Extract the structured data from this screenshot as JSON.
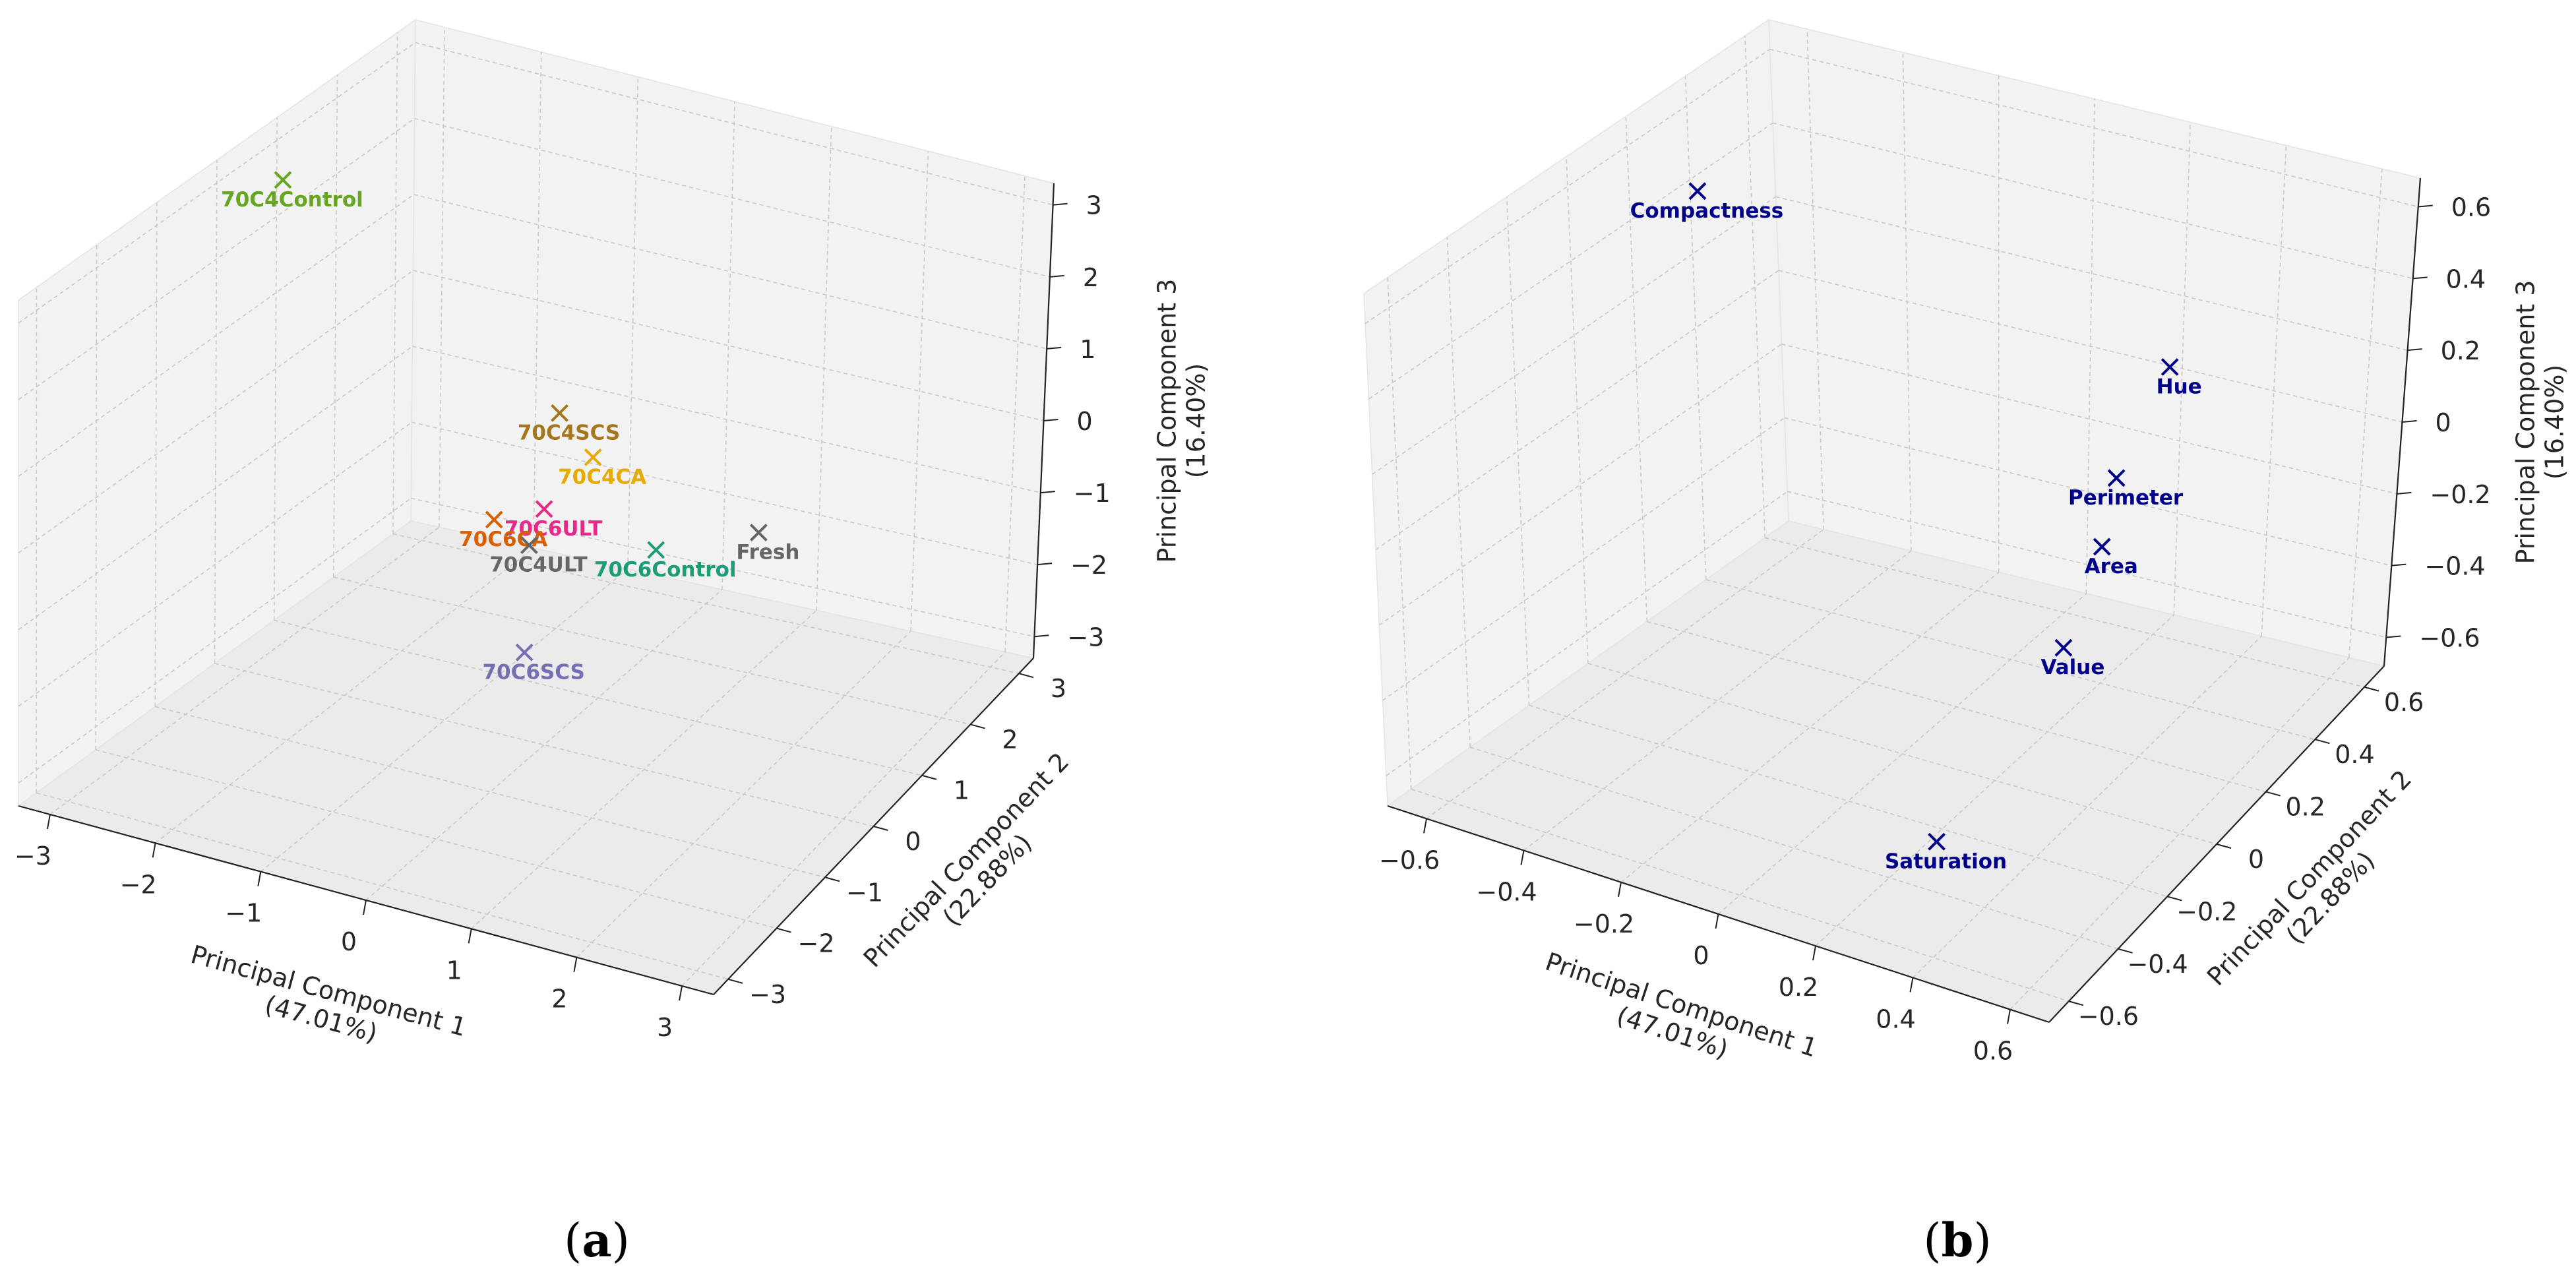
{
  "panel_labels": {
    "a": "a",
    "b": "b"
  },
  "chart_data": [
    {
      "type": "scatter3d",
      "panel": "a",
      "title": "",
      "xlabel": [
        "Principal Component 1",
        "(47.01%)"
      ],
      "ylabel": [
        "Principal Component 2",
        "(22.88%)"
      ],
      "zlabel": [
        "Principal Component 3",
        "(16.40%)"
      ],
      "xlim": [
        -3.3,
        3.3
      ],
      "ylim": [
        -3.3,
        3.3
      ],
      "zlim": [
        -3.3,
        3.3
      ],
      "xticks": [
        -3,
        -2,
        -1,
        0,
        1,
        2,
        3
      ],
      "yticks": [
        -3,
        -2,
        -1,
        0,
        1,
        2,
        3
      ],
      "zticks": [
        -3,
        -2,
        -1,
        0,
        1,
        2,
        3
      ],
      "grid": true,
      "marker": "x",
      "points": [
        {
          "label": "70C4Control",
          "x": -3.0,
          "y": 0.6,
          "z": 2.8,
          "color": "#66a61e"
        },
        {
          "label": "70C4SCS",
          "x": -0.6,
          "y": 1.3,
          "z": 0.1,
          "color": "#a6761d"
        },
        {
          "label": "70C4CA",
          "x": -0.2,
          "y": 1.2,
          "z": -0.3,
          "color": "#e6ab02"
        },
        {
          "label": "70C6ULT",
          "x": -0.3,
          "y": 0.5,
          "z": -0.6,
          "color": "#e7298a"
        },
        {
          "label": "70C6Control",
          "x": 0.4,
          "y": 1.3,
          "z": -1.4,
          "color": "#1b9e77"
        },
        {
          "label": "70C6CA",
          "x": -0.8,
          "y": 0.5,
          "z": -0.9,
          "color": "#d95f02"
        },
        {
          "label": "70C4ULT",
          "x": -0.5,
          "y": 0.6,
          "z": -1.2,
          "color": "#666666"
        },
        {
          "label": "70C6SCS",
          "x": -0.1,
          "y": -0.2,
          "z": -2.0,
          "color": "#7570b3"
        },
        {
          "label": "Fresh",
          "x": 3.0,
          "y": -1.8,
          "z": 1.5,
          "color": "#666666"
        }
      ]
    },
    {
      "type": "scatter3d",
      "panel": "b",
      "title": "",
      "xlabel": [
        "Principal Component 1",
        "(47.01%)"
      ],
      "ylabel": [
        "Principal Component 2",
        "(22.88%)"
      ],
      "zlabel": [
        "Principal Component 3",
        "(16.40%)"
      ],
      "xlim": [
        -0.68,
        0.68
      ],
      "ylim": [
        -0.68,
        0.68
      ],
      "zlim": [
        -0.68,
        0.68
      ],
      "xticks": [
        -0.6,
        -0.4,
        -0.2,
        0.0,
        0.2,
        0.4,
        0.6
      ],
      "yticks": [
        -0.6,
        -0.4,
        -0.2,
        0.0,
        0.2,
        0.4,
        0.6
      ],
      "zticks": [
        -0.6,
        -0.4,
        -0.2,
        0.0,
        0.2,
        0.4,
        0.6
      ],
      "grid": true,
      "marker": "x",
      "points": [
        {
          "label": "Compactness",
          "x": -0.6,
          "y": 0.3,
          "z": 0.45,
          "color": "#00008b"
        },
        {
          "label": "Hue",
          "x": 0.5,
          "y": 0.1,
          "z": 0.45,
          "color": "#00008b"
        },
        {
          "label": "Perimeter",
          "x": 0.45,
          "y": 0.0,
          "z": 0.2,
          "color": "#00008b"
        },
        {
          "label": "Area",
          "x": 0.45,
          "y": -0.05,
          "z": 0.05,
          "color": "#00008b"
        },
        {
          "label": "Value",
          "x": 0.4,
          "y": -0.1,
          "z": -0.2,
          "color": "#00008b"
        },
        {
          "label": "Saturation",
          "x": 0.3,
          "y": -0.4,
          "z": -0.55,
          "color": "#00008b"
        }
      ]
    }
  ]
}
